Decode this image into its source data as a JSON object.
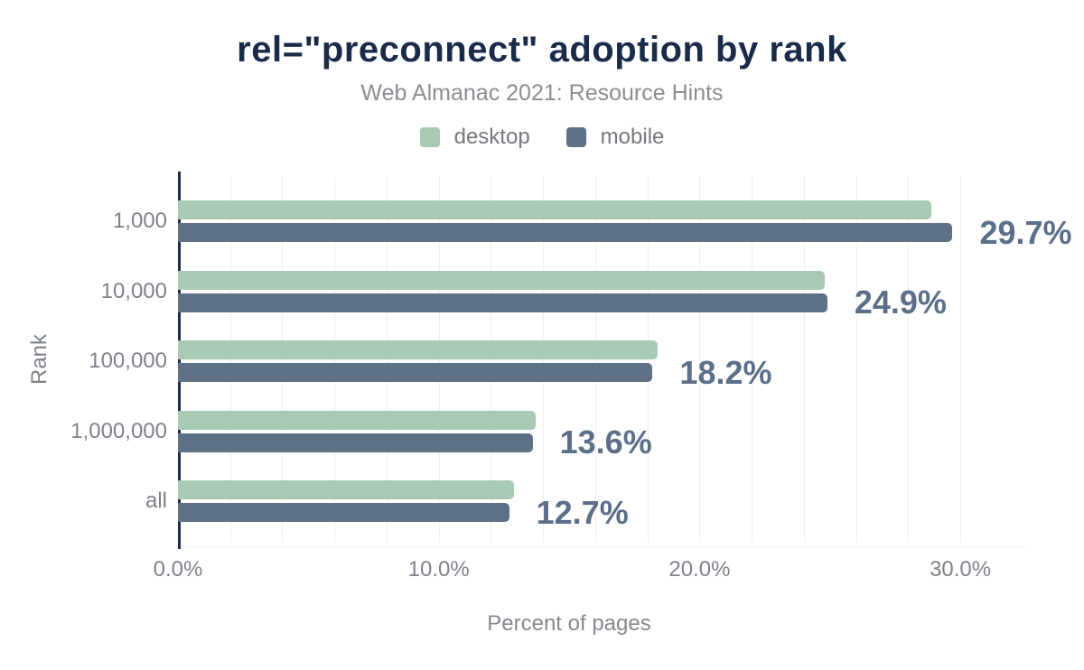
{
  "chart": {
    "legend": [
      {
        "label": "desktop",
        "color": "#a8c9b4"
      },
      {
        "label": "mobile",
        "color": "#5f7186"
      }
    ]
  },
  "chart_data": {
    "type": "bar",
    "orientation": "horizontal",
    "title": "rel=\"preconnect\" adoption by rank",
    "subtitle": "Web Almanac 2021: Resource Hints",
    "categories": [
      "1,000",
      "10,000",
      "100,000",
      "1,000,000",
      "all"
    ],
    "series": [
      {
        "name": "desktop",
        "color": "#a8c9b4",
        "values": [
          28.9,
          24.8,
          18.4,
          13.7,
          12.9
        ]
      },
      {
        "name": "mobile",
        "color": "#5f7186",
        "values": [
          29.7,
          24.9,
          18.2,
          13.6,
          12.7
        ]
      }
    ],
    "data_labels": {
      "labeled_series": "mobile",
      "values": [
        "29.7%",
        "24.9%",
        "18.2%",
        "13.6%",
        "12.7%"
      ]
    },
    "xlabel": "Percent of pages",
    "ylabel": "Rank",
    "x_ticks": [
      {
        "label": "0.0%",
        "value": 0
      },
      {
        "label": "10.0%",
        "value": 10
      },
      {
        "label": "20.0%",
        "value": 20
      },
      {
        "label": "30.0%",
        "value": 30
      }
    ],
    "xlim": [
      0,
      32.5
    ],
    "gridlines": {
      "step": 2,
      "max": 30,
      "on": true
    },
    "legend_position": "top"
  },
  "colors": {
    "title": "#1a2b49",
    "subtitle": "#8a8d92",
    "axis_line": "#1a2b49",
    "gridline": "#efefef",
    "tick_label": "#7d828b",
    "axis_title": "#85888e",
    "data_label": "#5c6f88",
    "background": "#ffffff"
  }
}
